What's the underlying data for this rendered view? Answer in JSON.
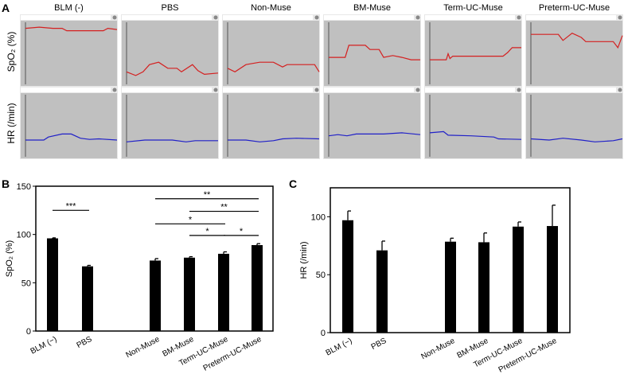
{
  "panel_labels": {
    "a": "A",
    "b": "B",
    "c": "C"
  },
  "panel_a": {
    "groups": [
      "BLM (-)",
      "PBS",
      "Non-Muse",
      "BM-Muse",
      "Term-UC-Muse",
      "Preterm-UC-Muse"
    ],
    "row_labels": {
      "spo2": "SpO₂ (%)",
      "hr": "HR (/min)"
    },
    "colors": {
      "spo2": "#d42020",
      "hr": "#2020c8",
      "panel_bg": "#c0c0c0"
    }
  },
  "chart_data": [
    {
      "type": "bar",
      "title": "",
      "xlabel": "",
      "ylabel": "SpO₂ (%)",
      "ylim": [
        0,
        150
      ],
      "yticks": [
        "0",
        "50",
        "100",
        "150"
      ],
      "categories": [
        "BLM (−)",
        "PBS",
        "Non-Muse",
        "BM-Muse",
        "Term-UC-Muse",
        "Preterm-UC-Muse"
      ],
      "values": [
        96,
        67,
        73,
        76,
        80,
        89
      ],
      "errors": [
        0.5,
        1,
        2,
        1,
        2,
        1.5
      ],
      "significance": [
        {
          "from": 0,
          "to": 1,
          "label": "***",
          "y": 125
        },
        {
          "from": 2,
          "to": 5,
          "label": "**",
          "y": 137
        },
        {
          "from": 3,
          "to": 5,
          "label": "**",
          "y": 124
        },
        {
          "from": 2,
          "to": 4,
          "label": "*",
          "y": 111
        },
        {
          "from": 3,
          "to": 4,
          "label": "*",
          "y": 99
        },
        {
          "from": 4,
          "to": 5,
          "label": "*",
          "y": 99
        }
      ]
    },
    {
      "type": "bar",
      "title": "",
      "xlabel": "",
      "ylabel": "HR (/min)",
      "ylim": [
        0,
        125
      ],
      "yticks": [
        "0",
        "50",
        "100"
      ],
      "categories": [
        "BLM (−)",
        "PBS",
        "Non-Muse",
        "BM-Muse",
        "Term-UC-Muse",
        "Preterm-UC-Muse"
      ],
      "values": [
        97,
        71,
        78.5,
        78,
        91.5,
        92
      ],
      "errors": [
        8,
        8,
        3,
        8,
        4,
        18
      ],
      "significance": []
    }
  ]
}
